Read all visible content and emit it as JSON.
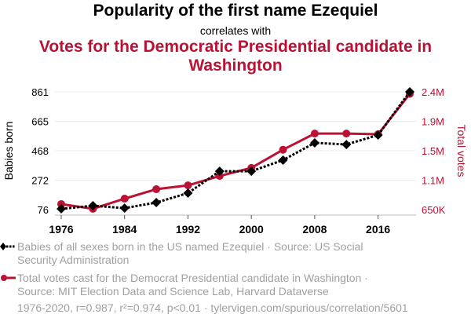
{
  "title": "Popularity of the first name Ezequiel",
  "subtitle": "correlates with",
  "title2": "Votes for the Democratic Presidential candidate in Washington",
  "legend": [
    {
      "label": "Babies of all sexes born in the US named Ezequiel · Source: US Social Security Administration",
      "color": "#000000",
      "marker": "diamond-dotted"
    },
    {
      "label": "Total votes cast for the Democrat Presidential candidate in Washington · Source: MIT Election Data and Science Lab, Harvard Dataverse",
      "color": "#bb1133",
      "marker": "circle-solid"
    }
  ],
  "footer": "1976-2020, r=0.987, r²=0.974, p<0.01 · tylervigen.com/spurious/correlation/5601",
  "chart_data": {
    "type": "line",
    "title": "Popularity of the first name Ezequiel correlates with Votes for the Democratic Presidential candidate in Washington",
    "x": [
      1976,
      1980,
      1984,
      1988,
      1992,
      1996,
      2000,
      2004,
      2008,
      2012,
      2016,
      2020
    ],
    "xticks": [
      "1976",
      "1984",
      "1992",
      "2000",
      "2008",
      "2016"
    ],
    "xlim": [
      1976,
      2020
    ],
    "grid": true,
    "legend_position": "bottom",
    "left_axis": {
      "label": "Babies born",
      "ticks": [
        "861",
        "665",
        "468",
        "272",
        "76"
      ],
      "ylim": [
        76,
        861
      ],
      "color": "#000000"
    },
    "right_axis": {
      "label": "Total votes",
      "ticks": [
        "2.4M",
        "1.9M",
        "1.5M",
        "1.1M",
        "650K"
      ],
      "ylim": [
        650000,
        2400000
      ],
      "color": "#bb1133"
    },
    "series": [
      {
        "name": "Babies of all sexes born in the US named Ezequiel",
        "axis": "left",
        "color": "#000000",
        "values": [
          81,
          102,
          86,
          123,
          186,
          332,
          332,
          406,
          521,
          510,
          573,
          861
        ]
      },
      {
        "name": "Total votes cast for the Democrat Presidential candidate in Washington",
        "axis": "right",
        "color": "#bb1133",
        "values": [
          732000,
          662000,
          813000,
          953000,
          1010000,
          1150000,
          1270000,
          1540000,
          1780000,
          1780000,
          1770000,
          2370000
        ]
      }
    ]
  }
}
